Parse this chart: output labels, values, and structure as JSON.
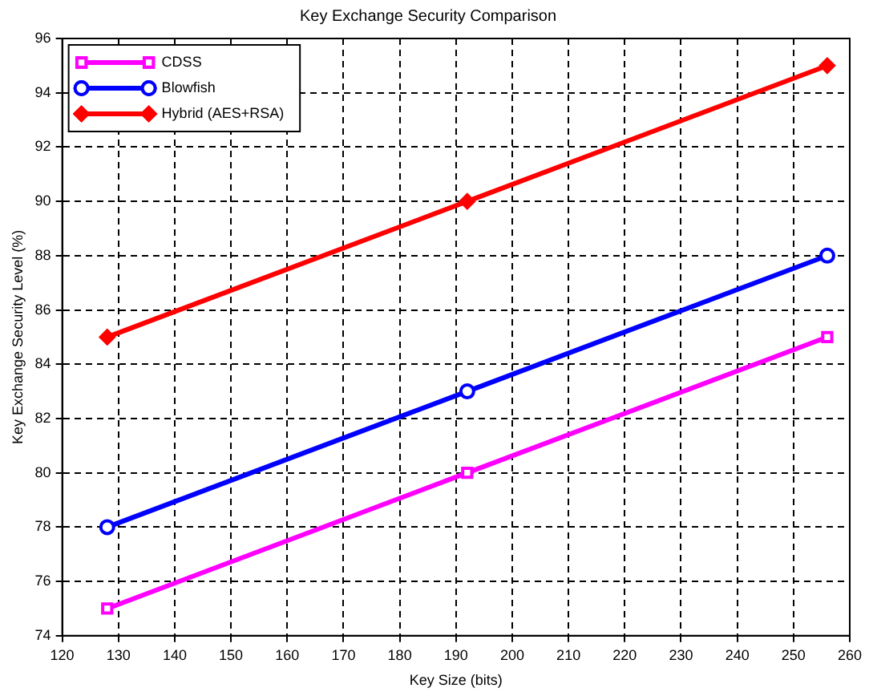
{
  "chart_data": {
    "type": "line",
    "title": "Key Exchange Security Comparison",
    "xlabel": "Key Size (bits)",
    "ylabel": "Key Exchange Security Level (%)",
    "x": [
      128,
      192,
      256
    ],
    "series": [
      {
        "name": "CDSS",
        "color": "#ff00ff",
        "values": [
          75,
          80,
          85
        ],
        "marker": "square"
      },
      {
        "name": "Blowfish",
        "color": "#0000ff",
        "values": [
          78,
          83,
          88
        ],
        "marker": "circle"
      },
      {
        "name": "Hybrid (AES+RSA)",
        "color": "#ff0000",
        "values": [
          85,
          90,
          95
        ],
        "marker": "diamond"
      }
    ],
    "xlim": [
      120,
      260
    ],
    "xticks": [
      120,
      130,
      140,
      150,
      160,
      170,
      180,
      190,
      200,
      210,
      220,
      230,
      240,
      250,
      260
    ],
    "ylim": [
      74,
      96
    ],
    "yticks": [
      74,
      76,
      78,
      80,
      82,
      84,
      86,
      88,
      90,
      92,
      94,
      96
    ],
    "grid": true,
    "legend": "top left",
    "line_style": "solid"
  }
}
